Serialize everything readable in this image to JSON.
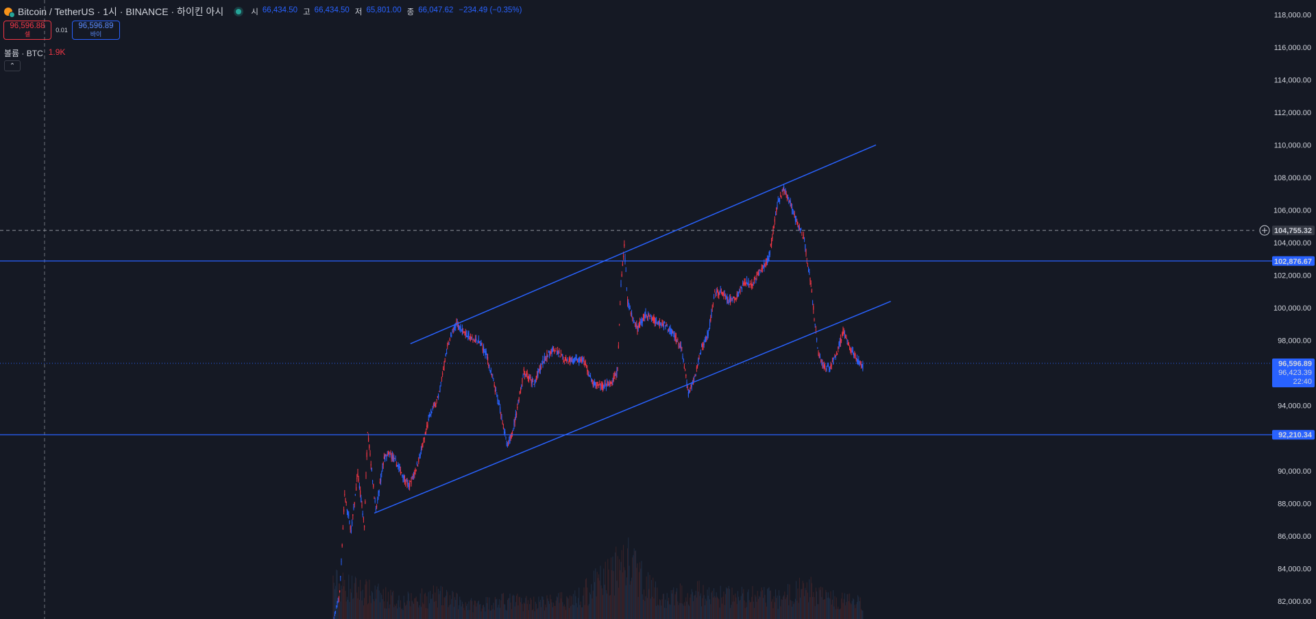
{
  "header": {
    "symbol_title": "Bitcoin / TetherUS · 1시 · BINANCE · 하이킨 아시",
    "ohlc": [
      {
        "label": "시",
        "value": "66,434.50"
      },
      {
        "label": "고",
        "value": "66,434.50"
      },
      {
        "label": "저",
        "value": "65,801.00"
      },
      {
        "label": "종",
        "value": "66,047.62"
      }
    ],
    "change": "−234.49 (−0.35%)"
  },
  "trade_buttons": {
    "sell_price": "96,596.88",
    "sell_label": "셀",
    "spread": "0.01",
    "buy_price": "96,596.89",
    "buy_label": "바이"
  },
  "volume_legend": {
    "label": "볼륨 · BTC",
    "value": "1.9K"
  },
  "icons": {
    "logo": "bitcoin-logo-icon",
    "live": "live-status-icon",
    "collapse": "chevron-up-icon",
    "alert": "add-alert-icon"
  },
  "colors": {
    "up": "#f23645",
    "down": "#2962ff",
    "background": "#151924",
    "accent": "#2962ff"
  },
  "chart_data": {
    "type": "candlestick",
    "price_axis_ticks": [
      "118,000.00",
      "116,000.00",
      "114,000.00",
      "112,000.00",
      "110,000.00",
      "108,000.00",
      "106,000.00",
      "104,000.00",
      "102,000.00",
      "100,000.00",
      "98,000.00",
      "94,000.00",
      "90,000.00",
      "88,000.00",
      "86,000.00",
      "84,000.00",
      "82,000.00"
    ],
    "y_range": [
      80900,
      118900
    ],
    "path_points": [
      [
        0,
        80600
      ],
      [
        8,
        82500
      ],
      [
        14,
        88500
      ],
      [
        22,
        86300
      ],
      [
        30,
        89800
      ],
      [
        38,
        86600
      ],
      [
        42,
        92500
      ],
      [
        52,
        87500
      ],
      [
        62,
        90800
      ],
      [
        70,
        91000
      ],
      [
        80,
        90200
      ],
      [
        92,
        89000
      ],
      [
        100,
        90000
      ],
      [
        110,
        91700
      ],
      [
        118,
        93500
      ],
      [
        128,
        94500
      ],
      [
        136,
        96800
      ],
      [
        140,
        97800
      ],
      [
        150,
        99100
      ],
      [
        158,
        98600
      ],
      [
        168,
        98100
      ],
      [
        178,
        97900
      ],
      [
        186,
        97200
      ],
      [
        196,
        95200
      ],
      [
        204,
        93600
      ],
      [
        212,
        91400
      ],
      [
        220,
        92800
      ],
      [
        232,
        96100
      ],
      [
        244,
        95300
      ],
      [
        256,
        96800
      ],
      [
        268,
        97500
      ],
      [
        280,
        96900
      ],
      [
        292,
        96800
      ],
      [
        304,
        96800
      ],
      [
        316,
        95300
      ],
      [
        328,
        95200
      ],
      [
        338,
        95300
      ],
      [
        346,
        96200
      ],
      [
        350,
        101500
      ],
      [
        354,
        103800
      ],
      [
        358,
        100500
      ],
      [
        364,
        99400
      ],
      [
        370,
        98700
      ],
      [
        380,
        99600
      ],
      [
        392,
        99200
      ],
      [
        404,
        99000
      ],
      [
        414,
        98400
      ],
      [
        424,
        97400
      ],
      [
        432,
        94700
      ],
      [
        440,
        95800
      ],
      [
        448,
        97600
      ],
      [
        456,
        98400
      ],
      [
        464,
        100800
      ],
      [
        472,
        101000
      ],
      [
        480,
        100400
      ],
      [
        490,
        100600
      ],
      [
        500,
        101600
      ],
      [
        510,
        101500
      ],
      [
        520,
        102300
      ],
      [
        530,
        103100
      ],
      [
        540,
        106300
      ],
      [
        548,
        107300
      ],
      [
        556,
        106400
      ],
      [
        564,
        105200
      ],
      [
        572,
        104400
      ],
      [
        578,
        102400
      ],
      [
        582,
        101000
      ],
      [
        586,
        98900
      ],
      [
        590,
        97200
      ],
      [
        596,
        96400
      ],
      [
        604,
        96300
      ],
      [
        612,
        97200
      ],
      [
        620,
        98500
      ],
      [
        628,
        97600
      ],
      [
        636,
        96900
      ],
      [
        644,
        96400
      ]
    ],
    "volume_series": [
      [
        0,
        2.0
      ],
      [
        42,
        1.5
      ],
      [
        84,
        1.0
      ],
      [
        126,
        1.3
      ],
      [
        168,
        0.8
      ],
      [
        210,
        1.0
      ],
      [
        252,
        0.9
      ],
      [
        294,
        1.1
      ],
      [
        346,
        2.8
      ],
      [
        354,
        3.4
      ],
      [
        400,
        1.0
      ],
      [
        432,
        1.6
      ],
      [
        456,
        1.3
      ],
      [
        540,
        1.2
      ],
      [
        578,
        1.7
      ],
      [
        604,
        1.1
      ],
      [
        644,
        0.9
      ]
    ],
    "horizontal_levels": [
      {
        "price": 102876.67,
        "label": "102,876.67",
        "style": "solid",
        "color": "#2962ff"
      },
      {
        "price": 92210.34,
        "label": "92,210.34",
        "style": "solid",
        "color": "#2962ff"
      },
      {
        "price": 104755.32,
        "label": "104,755.32",
        "style": "dashed-crosshair",
        "color": "#9598a1"
      },
      {
        "price": 96596.89,
        "label": "96,596.89",
        "style": "dotted-current",
        "color": "#2962ff"
      }
    ],
    "trend_lines": [
      {
        "from": [
          94,
          97800
        ],
        "to": [
          660,
          110000
        ],
        "color": "#2962ff"
      },
      {
        "from": [
          50,
          87400
        ],
        "to": [
          678,
          100400
        ],
        "color": "#2962ff"
      }
    ],
    "price_labels": {
      "current": "96,596.89",
      "bid": "96,423.39",
      "countdown": "22:40"
    }
  }
}
